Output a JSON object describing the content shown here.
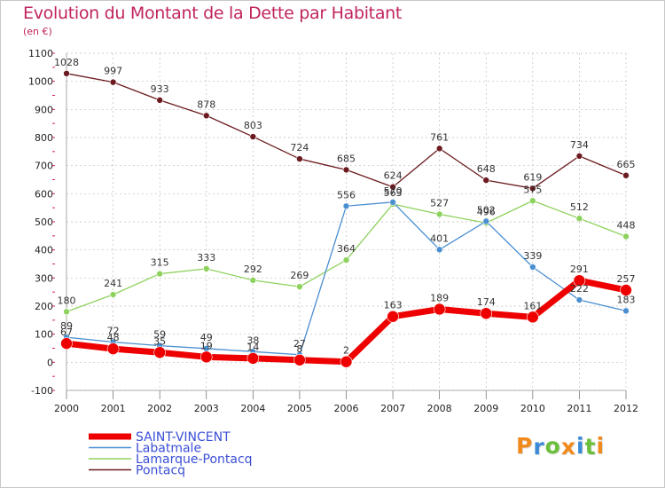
{
  "chart_data": {
    "type": "line",
    "title": "Evolution du Montant de la Dette par Habitant",
    "subtitle": "(en €)",
    "categories": [
      "2000",
      "2001",
      "2002",
      "2003",
      "2004",
      "2005",
      "2006",
      "2007",
      "2008",
      "2009",
      "2010",
      "2011",
      "2012"
    ],
    "ylim": [
      -100,
      1100
    ],
    "yticks": [
      -100,
      0,
      100,
      200,
      300,
      400,
      500,
      600,
      700,
      800,
      900,
      1000,
      1100
    ],
    "grid": true,
    "legend_position": "bottom-left",
    "series": [
      {
        "name": "Pontacq",
        "color": "#6b1a1f",
        "width": 1.3,
        "marker": 3.5,
        "values": [
          1028,
          997,
          933,
          878,
          803,
          724,
          685,
          624,
          761,
          648,
          619,
          734,
          665
        ]
      },
      {
        "name": "Lamarque-Pontacq",
        "color": "#8ed25e",
        "width": 1.3,
        "marker": 3.5,
        "values": [
          180,
          241,
          315,
          333,
          292,
          269,
          364,
          563,
          527,
          496,
          575,
          512,
          448
        ]
      },
      {
        "name": "Labatmale",
        "color": "#4a8fd1",
        "width": 1.3,
        "marker": 3.5,
        "values": [
          89,
          72,
          59,
          49,
          38,
          27,
          556,
          570,
          401,
          502,
          339,
          222,
          183
        ]
      },
      {
        "name": "SAINT-VINCENT",
        "color": "#ee0000",
        "width": 7,
        "marker": 6.5,
        "values": [
          67,
          48,
          35,
          19,
          14,
          8,
          2,
          163,
          189,
          174,
          161,
          291,
          257
        ]
      }
    ],
    "legend": [
      {
        "name": "SAINT-VINCENT",
        "color": "#ee0000"
      },
      {
        "name": "Labatmale",
        "color": "#4a8fd1"
      },
      {
        "name": "Lamarque-Pontacq",
        "color": "#8ed25e"
      },
      {
        "name": "Pontacq",
        "color": "#6b1a1f"
      }
    ]
  },
  "logo": {
    "text": "Proxiti",
    "letters": [
      {
        "ch": "P",
        "color": "#f08a1c"
      },
      {
        "ch": "r",
        "color": "#3a8ad8"
      },
      {
        "ch": "o",
        "color": "#6cbf3a"
      },
      {
        "ch": "x",
        "color": "#f08a1c"
      },
      {
        "ch": "i",
        "color": "#3a8ad8"
      },
      {
        "ch": "t",
        "color": "#6cbf3a"
      },
      {
        "ch": "i",
        "color": "#f08a1c"
      }
    ]
  }
}
